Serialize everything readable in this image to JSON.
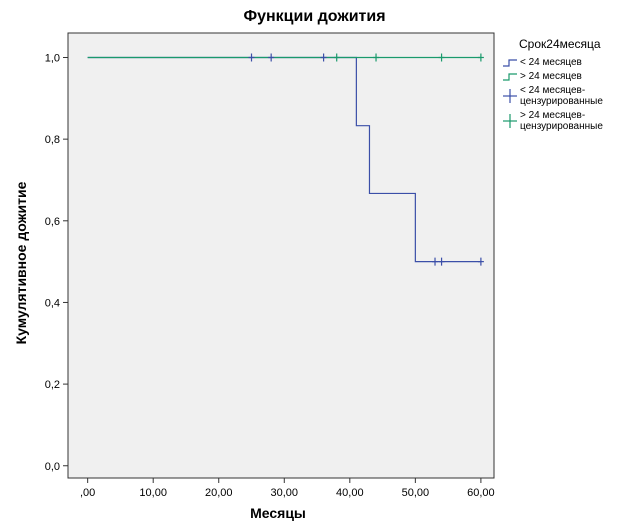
{
  "chart_data": {
    "type": "line",
    "title": "Функции дожития",
    "xlabel": "Месяцы",
    "ylabel": "Кумулятивное дожитие",
    "xlim": [
      -3,
      62
    ],
    "ylim": [
      -0.03,
      1.06
    ],
    "x_ticks": [
      0,
      10,
      20,
      30,
      40,
      50,
      60
    ],
    "x_tick_labels": [
      ",00",
      "10,00",
      "20,00",
      "30,00",
      "40,00",
      "50,00",
      "60,00"
    ],
    "y_ticks": [
      0,
      0.2,
      0.4,
      0.6,
      0.8,
      1.0
    ],
    "y_tick_labels": [
      "0,0",
      "0,2",
      "0,4",
      "0,6",
      "0,8",
      "1,0"
    ],
    "legend_title": "Срок24месяца",
    "legend_position": "right",
    "series": [
      {
        "name": "< 24 месяцев",
        "color": "#3b4fa8",
        "steps": [
          [
            0,
            1.0
          ],
          [
            41,
            0.833
          ],
          [
            43,
            0.667
          ],
          [
            50,
            0.5
          ],
          [
            60,
            0.5
          ]
        ],
        "censored_name": "< 24 месяцев-цензурированные",
        "censored": [
          [
            25,
            1.0
          ],
          [
            28,
            1.0
          ],
          [
            36,
            1.0
          ],
          [
            53,
            0.5
          ],
          [
            54,
            0.5
          ],
          [
            60,
            0.5
          ]
        ]
      },
      {
        "name": "> 24 месяцев",
        "color": "#1a9a6c",
        "steps": [
          [
            0,
            1.0
          ],
          [
            60,
            1.0
          ]
        ],
        "censored_name": "> 24 месяцев-цензурированные",
        "censored": [
          [
            38,
            1.0
          ],
          [
            44,
            1.0
          ],
          [
            54,
            1.0
          ],
          [
            60,
            1.0
          ]
        ]
      }
    ]
  }
}
